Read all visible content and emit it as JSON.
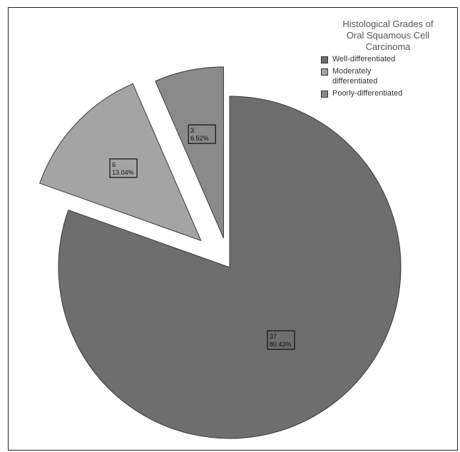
{
  "chart_data": {
    "type": "pie",
    "title": "Histological Grades of Oral Squamous Cell Carcinoma",
    "exploded": true,
    "slices": [
      {
        "name": "Well-differentiated",
        "count": "37",
        "percent_label": "80.43%",
        "value": 80.43,
        "color": "#6e6e6e"
      },
      {
        "name": "Moderately differentiated",
        "count": "6",
        "percent_label": "13.04%",
        "value": 13.04,
        "color": "#a4a4a4"
      },
      {
        "name": "Poorly-differentiated",
        "count": "3",
        "percent_label": "6.52%",
        "value": 6.52,
        "color": "#8a8a8a"
      }
    ]
  },
  "legend": {
    "title": "Histological Grades of\nOral Squamous Cell\nCarcinoma",
    "items": [
      "Well-differentiated",
      "Moderately\ndifferentiated",
      "Poorly-differentiated"
    ]
  }
}
